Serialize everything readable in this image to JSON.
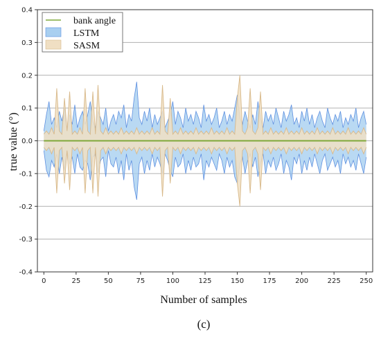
{
  "chart_data": {
    "type": "area",
    "title": "",
    "xlabel": "Number of samples",
    "ylabel": "true value (°)",
    "caption": "(c)",
    "xlim": [
      -5,
      255
    ],
    "ylim": [
      -0.4,
      0.4
    ],
    "x_ticks": [
      0,
      25,
      50,
      75,
      100,
      125,
      150,
      175,
      200,
      225,
      250
    ],
    "y_ticks": [
      -0.4,
      -0.3,
      -0.2,
      -0.1,
      0.0,
      0.1,
      0.2,
      0.3,
      0.4
    ],
    "y_tick_labels": [
      "-0.4",
      "-0.3",
      "-0.2",
      "-0.1",
      "0.0",
      "0.1",
      "0.2",
      "0.3",
      "0.4"
    ],
    "grid": "horizontal",
    "legend_position": "top-left",
    "colors": {
      "bank_angle": "#7fa83a",
      "lstm_fill": "#a8cff0",
      "lstm_line": "#5d8fe0",
      "sasm_fill": "#f0dfc3",
      "sasm_line": "#d8b98a",
      "grid": "#b0b0b0",
      "axis": "#333333",
      "legend_border": "#777777"
    },
    "series": [
      {
        "name": "bank angle",
        "kind": "line",
        "x": [
          0,
          250
        ],
        "values": [
          0,
          0
        ]
      },
      {
        "name": "LSTM",
        "kind": "band",
        "x": [
          0,
          2,
          4,
          6,
          8,
          10,
          12,
          14,
          16,
          18,
          20,
          22,
          24,
          26,
          28,
          30,
          32,
          34,
          36,
          38,
          40,
          42,
          44,
          46,
          48,
          50,
          52,
          54,
          56,
          58,
          60,
          62,
          64,
          66,
          68,
          70,
          72,
          74,
          76,
          78,
          80,
          82,
          84,
          86,
          88,
          90,
          92,
          94,
          96,
          98,
          100,
          102,
          104,
          106,
          108,
          110,
          112,
          114,
          116,
          118,
          120,
          122,
          124,
          126,
          128,
          130,
          132,
          134,
          136,
          138,
          140,
          142,
          144,
          146,
          148,
          150,
          152,
          154,
          156,
          158,
          160,
          162,
          164,
          166,
          168,
          170,
          172,
          174,
          176,
          178,
          180,
          182,
          184,
          186,
          188,
          190,
          192,
          194,
          196,
          198,
          200,
          202,
          204,
          206,
          208,
          210,
          212,
          214,
          216,
          218,
          220,
          222,
          224,
          226,
          228,
          230,
          232,
          234,
          236,
          238,
          240,
          242,
          244,
          246,
          248,
          250
        ],
        "upper": [
          0.03,
          0.08,
          0.12,
          0.05,
          0.07,
          0.04,
          0.09,
          0.06,
          0.1,
          0.03,
          0.08,
          0.05,
          0.11,
          0.04,
          0.07,
          0.09,
          0.05,
          0.08,
          0.12,
          0.06,
          0.04,
          0.09,
          0.07,
          0.05,
          0.1,
          0.03,
          0.06,
          0.08,
          0.05,
          0.09,
          0.07,
          0.11,
          0.04,
          0.08,
          0.06,
          0.13,
          0.18,
          0.07,
          0.05,
          0.09,
          0.06,
          0.1,
          0.04,
          0.08,
          0.05,
          0.07,
          0.09,
          0.04,
          0.06,
          0.08,
          0.12,
          0.05,
          0.09,
          0.07,
          0.04,
          0.1,
          0.06,
          0.08,
          0.05,
          0.09,
          0.07,
          0.04,
          0.11,
          0.06,
          0.08,
          0.05,
          0.07,
          0.1,
          0.04,
          0.06,
          0.09,
          0.05,
          0.08,
          0.06,
          0.1,
          0.14,
          0.07,
          0.05,
          0.09,
          0.06,
          0.04,
          0.08,
          0.05,
          0.12,
          0.07,
          0.04,
          0.09,
          0.06,
          0.08,
          0.05,
          0.1,
          0.07,
          0.04,
          0.09,
          0.06,
          0.08,
          0.11,
          0.05,
          0.07,
          0.04,
          0.09,
          0.06,
          0.1,
          0.05,
          0.08,
          0.04,
          0.07,
          0.09,
          0.06,
          0.04,
          0.1,
          0.07,
          0.05,
          0.08,
          0.06,
          0.09,
          0.04,
          0.07,
          0.05,
          0.08,
          0.06,
          0.1,
          0.04,
          0.07,
          0.09,
          0.05
        ],
        "lower": [
          -0.03,
          -0.09,
          -0.11,
          -0.06,
          -0.08,
          -0.04,
          -0.1,
          -0.05,
          -0.09,
          -0.03,
          -0.07,
          -0.05,
          -0.1,
          -0.04,
          -0.08,
          -0.09,
          -0.06,
          -0.07,
          -0.12,
          -0.05,
          -0.04,
          -0.1,
          -0.06,
          -0.05,
          -0.11,
          -0.03,
          -0.07,
          -0.08,
          -0.05,
          -0.1,
          -0.06,
          -0.12,
          -0.04,
          -0.09,
          -0.06,
          -0.14,
          -0.18,
          -0.07,
          -0.05,
          -0.1,
          -0.06,
          -0.09,
          -0.04,
          -0.08,
          -0.05,
          -0.07,
          -0.1,
          -0.04,
          -0.06,
          -0.09,
          -0.11,
          -0.05,
          -0.08,
          -0.07,
          -0.04,
          -0.1,
          -0.06,
          -0.09,
          -0.05,
          -0.08,
          -0.07,
          -0.04,
          -0.12,
          -0.06,
          -0.08,
          -0.05,
          -0.07,
          -0.09,
          -0.04,
          -0.06,
          -0.1,
          -0.05,
          -0.08,
          -0.06,
          -0.11,
          -0.13,
          -0.07,
          -0.05,
          -0.1,
          -0.06,
          -0.04,
          -0.08,
          -0.05,
          -0.11,
          -0.07,
          -0.04,
          -0.1,
          -0.06,
          -0.08,
          -0.05,
          -0.09,
          -0.07,
          -0.04,
          -0.1,
          -0.06,
          -0.08,
          -0.12,
          -0.05,
          -0.07,
          -0.04,
          -0.1,
          -0.06,
          -0.09,
          -0.05,
          -0.08,
          -0.04,
          -0.07,
          -0.1,
          -0.06,
          -0.04,
          -0.09,
          -0.07,
          -0.05,
          -0.08,
          -0.06,
          -0.1,
          -0.04,
          -0.07,
          -0.05,
          -0.08,
          -0.06,
          -0.09,
          -0.04,
          -0.07,
          -0.1,
          -0.05
        ]
      },
      {
        "name": "SASM",
        "kind": "band",
        "x": [
          0,
          2,
          4,
          6,
          8,
          10,
          12,
          14,
          16,
          18,
          20,
          22,
          24,
          26,
          28,
          30,
          32,
          34,
          36,
          38,
          40,
          42,
          44,
          46,
          48,
          50,
          52,
          54,
          56,
          58,
          60,
          62,
          64,
          66,
          68,
          70,
          72,
          74,
          76,
          78,
          80,
          82,
          84,
          86,
          88,
          90,
          92,
          94,
          96,
          98,
          100,
          102,
          104,
          106,
          108,
          110,
          112,
          114,
          116,
          118,
          120,
          122,
          124,
          126,
          128,
          130,
          132,
          134,
          136,
          138,
          140,
          142,
          144,
          146,
          148,
          150,
          152,
          154,
          156,
          158,
          160,
          162,
          164,
          166,
          168,
          170,
          172,
          174,
          176,
          178,
          180,
          182,
          184,
          186,
          188,
          190,
          192,
          194,
          196,
          198,
          200,
          202,
          204,
          206,
          208,
          210,
          212,
          214,
          216,
          218,
          220,
          222,
          224,
          226,
          228,
          230,
          232,
          234,
          236,
          238,
          240,
          242,
          244,
          246,
          248,
          250
        ],
        "upper": [
          0.02,
          0.03,
          0.02,
          0.04,
          0.02,
          0.16,
          0.03,
          0.02,
          0.13,
          0.03,
          0.15,
          0.02,
          0.03,
          0.02,
          0.04,
          0.02,
          0.16,
          0.03,
          0.02,
          0.15,
          0.02,
          0.17,
          0.03,
          0.02,
          0.04,
          0.02,
          0.03,
          0.02,
          0.03,
          0.02,
          0.04,
          0.02,
          0.03,
          0.02,
          0.03,
          0.02,
          0.04,
          0.02,
          0.03,
          0.02,
          0.03,
          0.02,
          0.04,
          0.02,
          0.03,
          0.02,
          0.17,
          0.03,
          0.02,
          0.13,
          0.02,
          0.03,
          0.02,
          0.04,
          0.02,
          0.03,
          0.02,
          0.03,
          0.02,
          0.04,
          0.02,
          0.03,
          0.02,
          0.03,
          0.02,
          0.04,
          0.02,
          0.03,
          0.02,
          0.03,
          0.02,
          0.04,
          0.02,
          0.03,
          0.02,
          0.13,
          0.2,
          0.03,
          0.02,
          0.04,
          0.16,
          0.03,
          0.02,
          0.04,
          0.15,
          0.02,
          0.03,
          0.02,
          0.04,
          0.02,
          0.03,
          0.02,
          0.03,
          0.02,
          0.04,
          0.02,
          0.03,
          0.02,
          0.03,
          0.02,
          0.04,
          0.02,
          0.03,
          0.02,
          0.03,
          0.02,
          0.04,
          0.02,
          0.03,
          0.02,
          0.03,
          0.02,
          0.04,
          0.02,
          0.03,
          0.02,
          0.03,
          0.02,
          0.04,
          0.02,
          0.03,
          0.02,
          0.03,
          0.02,
          0.04,
          0.02
        ],
        "lower": [
          -0.02,
          -0.03,
          -0.02,
          -0.04,
          -0.02,
          -0.16,
          -0.03,
          -0.02,
          -0.13,
          -0.03,
          -0.15,
          -0.02,
          -0.03,
          -0.02,
          -0.04,
          -0.02,
          -0.16,
          -0.03,
          -0.02,
          -0.16,
          -0.02,
          -0.17,
          -0.03,
          -0.02,
          -0.04,
          -0.02,
          -0.03,
          -0.02,
          -0.03,
          -0.02,
          -0.04,
          -0.02,
          -0.03,
          -0.02,
          -0.03,
          -0.02,
          -0.04,
          -0.02,
          -0.03,
          -0.02,
          -0.03,
          -0.02,
          -0.04,
          -0.02,
          -0.03,
          -0.02,
          -0.17,
          -0.03,
          -0.02,
          -0.13,
          -0.02,
          -0.03,
          -0.02,
          -0.04,
          -0.02,
          -0.03,
          -0.02,
          -0.03,
          -0.02,
          -0.04,
          -0.02,
          -0.03,
          -0.02,
          -0.03,
          -0.02,
          -0.04,
          -0.02,
          -0.03,
          -0.02,
          -0.03,
          -0.02,
          -0.04,
          -0.02,
          -0.03,
          -0.02,
          -0.13,
          -0.2,
          -0.03,
          -0.02,
          -0.04,
          -0.16,
          -0.03,
          -0.02,
          -0.04,
          -0.15,
          -0.02,
          -0.03,
          -0.02,
          -0.04,
          -0.02,
          -0.03,
          -0.02,
          -0.03,
          -0.02,
          -0.04,
          -0.02,
          -0.03,
          -0.02,
          -0.03,
          -0.02,
          -0.04,
          -0.02,
          -0.03,
          -0.02,
          -0.03,
          -0.02,
          -0.04,
          -0.02,
          -0.03,
          -0.02,
          -0.03,
          -0.02,
          -0.04,
          -0.02,
          -0.03,
          -0.02,
          -0.03,
          -0.02,
          -0.04,
          -0.02,
          -0.03,
          -0.02,
          -0.03,
          -0.02,
          -0.04,
          -0.02
        ]
      }
    ]
  }
}
